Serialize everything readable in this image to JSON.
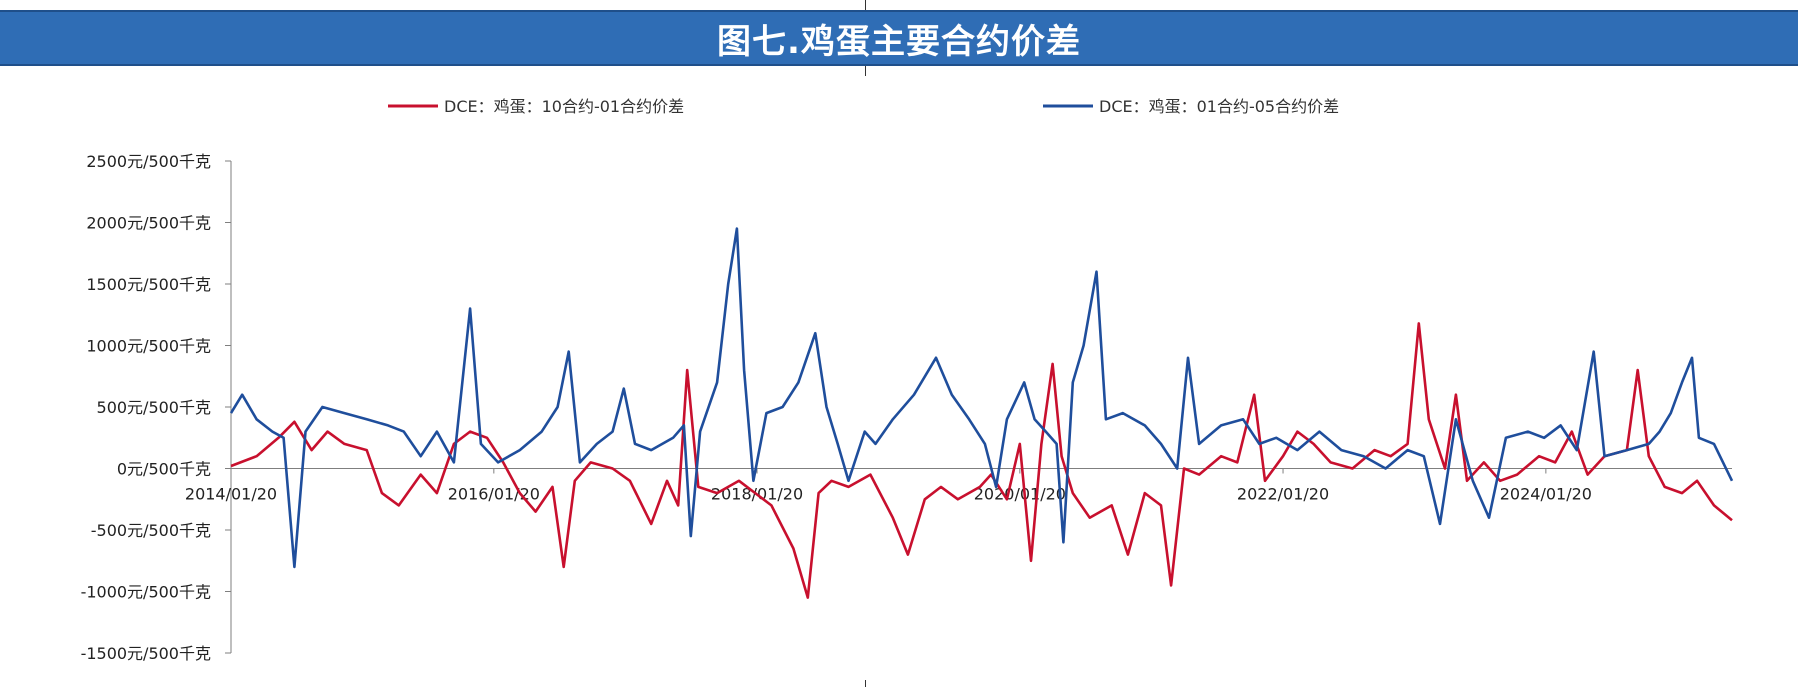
{
  "title": "图七.鸡蛋主要合约价差",
  "chart_data": {
    "type": "line",
    "title": "图七.鸡蛋主要合约价差",
    "ylim": [
      -1500,
      2500
    ],
    "yticks": [
      {
        "value": 2500,
        "label": "2500元/500千克"
      },
      {
        "value": 2000,
        "label": "2000元/500千克"
      },
      {
        "value": 1500,
        "label": "1500元/500千克"
      },
      {
        "value": 1000,
        "label": "1000元/500千克"
      },
      {
        "value": 500,
        "label": "500元/500千克"
      },
      {
        "value": 0,
        "label": "0元/500千克"
      },
      {
        "value": -500,
        "label": "-500元/500千克"
      },
      {
        "value": -1000,
        "label": "-1000元/500千克"
      },
      {
        "value": -1500,
        "label": "-1500元/500千克"
      }
    ],
    "xlim": [
      "2014/01/20",
      "2025/06/20"
    ],
    "xticks": [
      "2014/01/20",
      "2016/01/20",
      "2018/01/20",
      "2020/01/20",
      "2022/01/20",
      "2024/01/20"
    ],
    "legend_position": "top",
    "grid": false,
    "series": [
      {
        "name": "DCE：鸡蛋：10合约-01合约价差",
        "color": "#c8102e",
        "points": [
          [
            "2014/01/20",
            20
          ],
          [
            "2014/04/01",
            100
          ],
          [
            "2014/06/01",
            250
          ],
          [
            "2014/07/15",
            380
          ],
          [
            "2014/09/01",
            150
          ],
          [
            "2014/10/15",
            300
          ],
          [
            "2014/12/01",
            200
          ],
          [
            "2015/02/01",
            150
          ],
          [
            "2015/03/15",
            -200
          ],
          [
            "2015/05/01",
            -300
          ],
          [
            "2015/07/01",
            -50
          ],
          [
            "2015/08/15",
            -200
          ],
          [
            "2015/10/01",
            200
          ],
          [
            "2015/11/15",
            300
          ],
          [
            "2016/01/01",
            250
          ],
          [
            "2016/02/15",
            50
          ],
          [
            "2016/04/01",
            -200
          ],
          [
            "2016/05/15",
            -350
          ],
          [
            "2016/07/01",
            -150
          ],
          [
            "2016/08/01",
            -800
          ],
          [
            "2016/09/01",
            -100
          ],
          [
            "2016/10/15",
            50
          ],
          [
            "2016/12/15",
            0
          ],
          [
            "2017/02/01",
            -100
          ],
          [
            "2017/04/01",
            -450
          ],
          [
            "2017/05/15",
            -100
          ],
          [
            "2017/06/15",
            -300
          ],
          [
            "2017/07/10",
            800
          ],
          [
            "2017/08/10",
            -150
          ],
          [
            "2017/10/01",
            -200
          ],
          [
            "2017/12/01",
            -100
          ],
          [
            "2018/01/15",
            -200
          ],
          [
            "2018/03/01",
            -300
          ],
          [
            "2018/05/01",
            -650
          ],
          [
            "2018/06/10",
            -1050
          ],
          [
            "2018/07/10",
            -200
          ],
          [
            "2018/08/15",
            -100
          ],
          [
            "2018/10/01",
            -150
          ],
          [
            "2018/12/01",
            -50
          ],
          [
            "2019/02/01",
            -400
          ],
          [
            "2019/03/15",
            -700
          ],
          [
            "2019/05/01",
            -250
          ],
          [
            "2019/06/15",
            -150
          ],
          [
            "2019/08/01",
            -250
          ],
          [
            "2019/10/01",
            -150
          ],
          [
            "2019/11/01",
            -50
          ],
          [
            "2019/12/15",
            -250
          ],
          [
            "2020/01/20",
            200
          ],
          [
            "2020/02/20",
            -750
          ],
          [
            "2020/03/20",
            200
          ],
          [
            "2020/04/20",
            850
          ],
          [
            "2020/05/15",
            100
          ],
          [
            "2020/06/15",
            -200
          ],
          [
            "2020/08/01",
            -400
          ],
          [
            "2020/10/01",
            -300
          ],
          [
            "2020/11/15",
            -700
          ],
          [
            "2021/01/01",
            -200
          ],
          [
            "2021/02/15",
            -300
          ],
          [
            "2021/03/15",
            -950
          ],
          [
            "2021/04/20",
            0
          ],
          [
            "2021/06/01",
            -50
          ],
          [
            "2021/08/01",
            100
          ],
          [
            "2021/09/15",
            50
          ],
          [
            "2021/11/01",
            600
          ],
          [
            "2021/12/01",
            -100
          ],
          [
            "2022/01/20",
            100
          ],
          [
            "2022/03/01",
            300
          ],
          [
            "2022/04/15",
            200
          ],
          [
            "2022/06/01",
            50
          ],
          [
            "2022/08/01",
            0
          ],
          [
            "2022/10/01",
            150
          ],
          [
            "2022/11/15",
            100
          ],
          [
            "2023/01/01",
            200
          ],
          [
            "2023/02/01",
            1180
          ],
          [
            "2023/03/01",
            400
          ],
          [
            "2023/04/15",
            0
          ],
          [
            "2023/05/15",
            600
          ],
          [
            "2023/06/15",
            -100
          ],
          [
            "2023/08/01",
            50
          ],
          [
            "2023/09/15",
            -100
          ],
          [
            "2023/11/01",
            -50
          ],
          [
            "2024/01/01",
            100
          ],
          [
            "2024/02/15",
            50
          ],
          [
            "2024/04/01",
            300
          ],
          [
            "2024/05/15",
            -50
          ],
          [
            "2024/07/01",
            100
          ],
          [
            "2024/09/01",
            150
          ],
          [
            "2024/10/01",
            800
          ],
          [
            "2024/11/01",
            100
          ],
          [
            "2024/12/15",
            -150
          ],
          [
            "2025/02/01",
            -200
          ],
          [
            "2025/03/15",
            -100
          ],
          [
            "2025/05/01",
            -300
          ],
          [
            "2025/06/20",
            -420
          ]
        ]
      },
      {
        "name": "DCE：鸡蛋：01合约-05合约价差",
        "color": "#1f4e9c",
        "points": [
          [
            "2014/01/20",
            450
          ],
          [
            "2014/02/20",
            600
          ],
          [
            "2014/04/01",
            400
          ],
          [
            "2014/05/15",
            300
          ],
          [
            "2014/06/15",
            250
          ],
          [
            "2014/07/15",
            -800
          ],
          [
            "2014/08/15",
            300
          ],
          [
            "2014/10/01",
            500
          ],
          [
            "2014/12/01",
            450
          ],
          [
            "2015/02/01",
            400
          ],
          [
            "2015/04/01",
            350
          ],
          [
            "2015/05/15",
            300
          ],
          [
            "2015/07/01",
            100
          ],
          [
            "2015/08/15",
            300
          ],
          [
            "2015/10/01",
            50
          ],
          [
            "2015/11/15",
            1300
          ],
          [
            "2015/12/15",
            200
          ],
          [
            "2016/02/01",
            50
          ],
          [
            "2016/04/01",
            150
          ],
          [
            "2016/06/01",
            300
          ],
          [
            "2016/07/15",
            500
          ],
          [
            "2016/08/15",
            950
          ],
          [
            "2016/09/15",
            50
          ],
          [
            "2016/11/01",
            200
          ],
          [
            "2016/12/15",
            300
          ],
          [
            "2017/01/15",
            650
          ],
          [
            "2017/02/15",
            200
          ],
          [
            "2017/04/01",
            150
          ],
          [
            "2017/06/01",
            250
          ],
          [
            "2017/07/01",
            350
          ],
          [
            "2017/07/20",
            -550
          ],
          [
            "2017/08/15",
            300
          ],
          [
            "2017/10/01",
            700
          ],
          [
            "2017/11/01",
            1500
          ],
          [
            "2017/11/25",
            1950
          ],
          [
            "2017/12/15",
            800
          ],
          [
            "2018/01/10",
            -100
          ],
          [
            "2018/02/15",
            450
          ],
          [
            "2018/04/01",
            500
          ],
          [
            "2018/05/15",
            700
          ],
          [
            "2018/07/01",
            1100
          ],
          [
            "2018/08/01",
            500
          ],
          [
            "2018/09/01",
            200
          ],
          [
            "2018/10/01",
            -100
          ],
          [
            "2018/11/15",
            300
          ],
          [
            "2018/12/15",
            200
          ],
          [
            "2019/02/01",
            400
          ],
          [
            "2019/04/01",
            600
          ],
          [
            "2019/06/01",
            900
          ],
          [
            "2019/07/15",
            600
          ],
          [
            "2019/09/01",
            400
          ],
          [
            "2019/10/15",
            200
          ],
          [
            "2019/11/15",
            -150
          ],
          [
            "2019/12/15",
            400
          ],
          [
            "2020/02/01",
            700
          ],
          [
            "2020/03/01",
            400
          ],
          [
            "2020/04/01",
            300
          ],
          [
            "2020/05/01",
            200
          ],
          [
            "2020/05/20",
            -600
          ],
          [
            "2020/06/15",
            700
          ],
          [
            "2020/07/15",
            1000
          ],
          [
            "2020/08/20",
            1600
          ],
          [
            "2020/09/15",
            400
          ],
          [
            "2020/11/01",
            450
          ],
          [
            "2021/01/01",
            350
          ],
          [
            "2021/02/15",
            200
          ],
          [
            "2021/04/01",
            0
          ],
          [
            "2021/05/01",
            900
          ],
          [
            "2021/06/01",
            200
          ],
          [
            "2021/08/01",
            350
          ],
          [
            "2021/10/01",
            400
          ],
          [
            "2021/11/15",
            200
          ],
          [
            "2022/01/01",
            250
          ],
          [
            "2022/03/01",
            150
          ],
          [
            "2022/05/01",
            300
          ],
          [
            "2022/07/01",
            150
          ],
          [
            "2022/09/01",
            100
          ],
          [
            "2022/11/01",
            0
          ],
          [
            "2023/01/01",
            150
          ],
          [
            "2023/02/15",
            100
          ],
          [
            "2023/04/01",
            -450
          ],
          [
            "2023/05/15",
            400
          ],
          [
            "2023/07/01",
            -100
          ],
          [
            "2023/08/15",
            -400
          ],
          [
            "2023/10/01",
            250
          ],
          [
            "2023/12/01",
            300
          ],
          [
            "2024/01/15",
            250
          ],
          [
            "2024/03/01",
            350
          ],
          [
            "2024/04/15",
            150
          ],
          [
            "2024/06/01",
            950
          ],
          [
            "2024/07/01",
            100
          ],
          [
            "2024/09/01",
            150
          ],
          [
            "2024/11/01",
            200
          ],
          [
            "2024/12/01",
            300
          ],
          [
            "2025/01/01",
            450
          ],
          [
            "2025/02/01",
            700
          ],
          [
            "2025/03/01",
            900
          ],
          [
            "2025/03/20",
            250
          ],
          [
            "2025/05/01",
            200
          ],
          [
            "2025/06/20",
            -100
          ]
        ]
      }
    ]
  }
}
